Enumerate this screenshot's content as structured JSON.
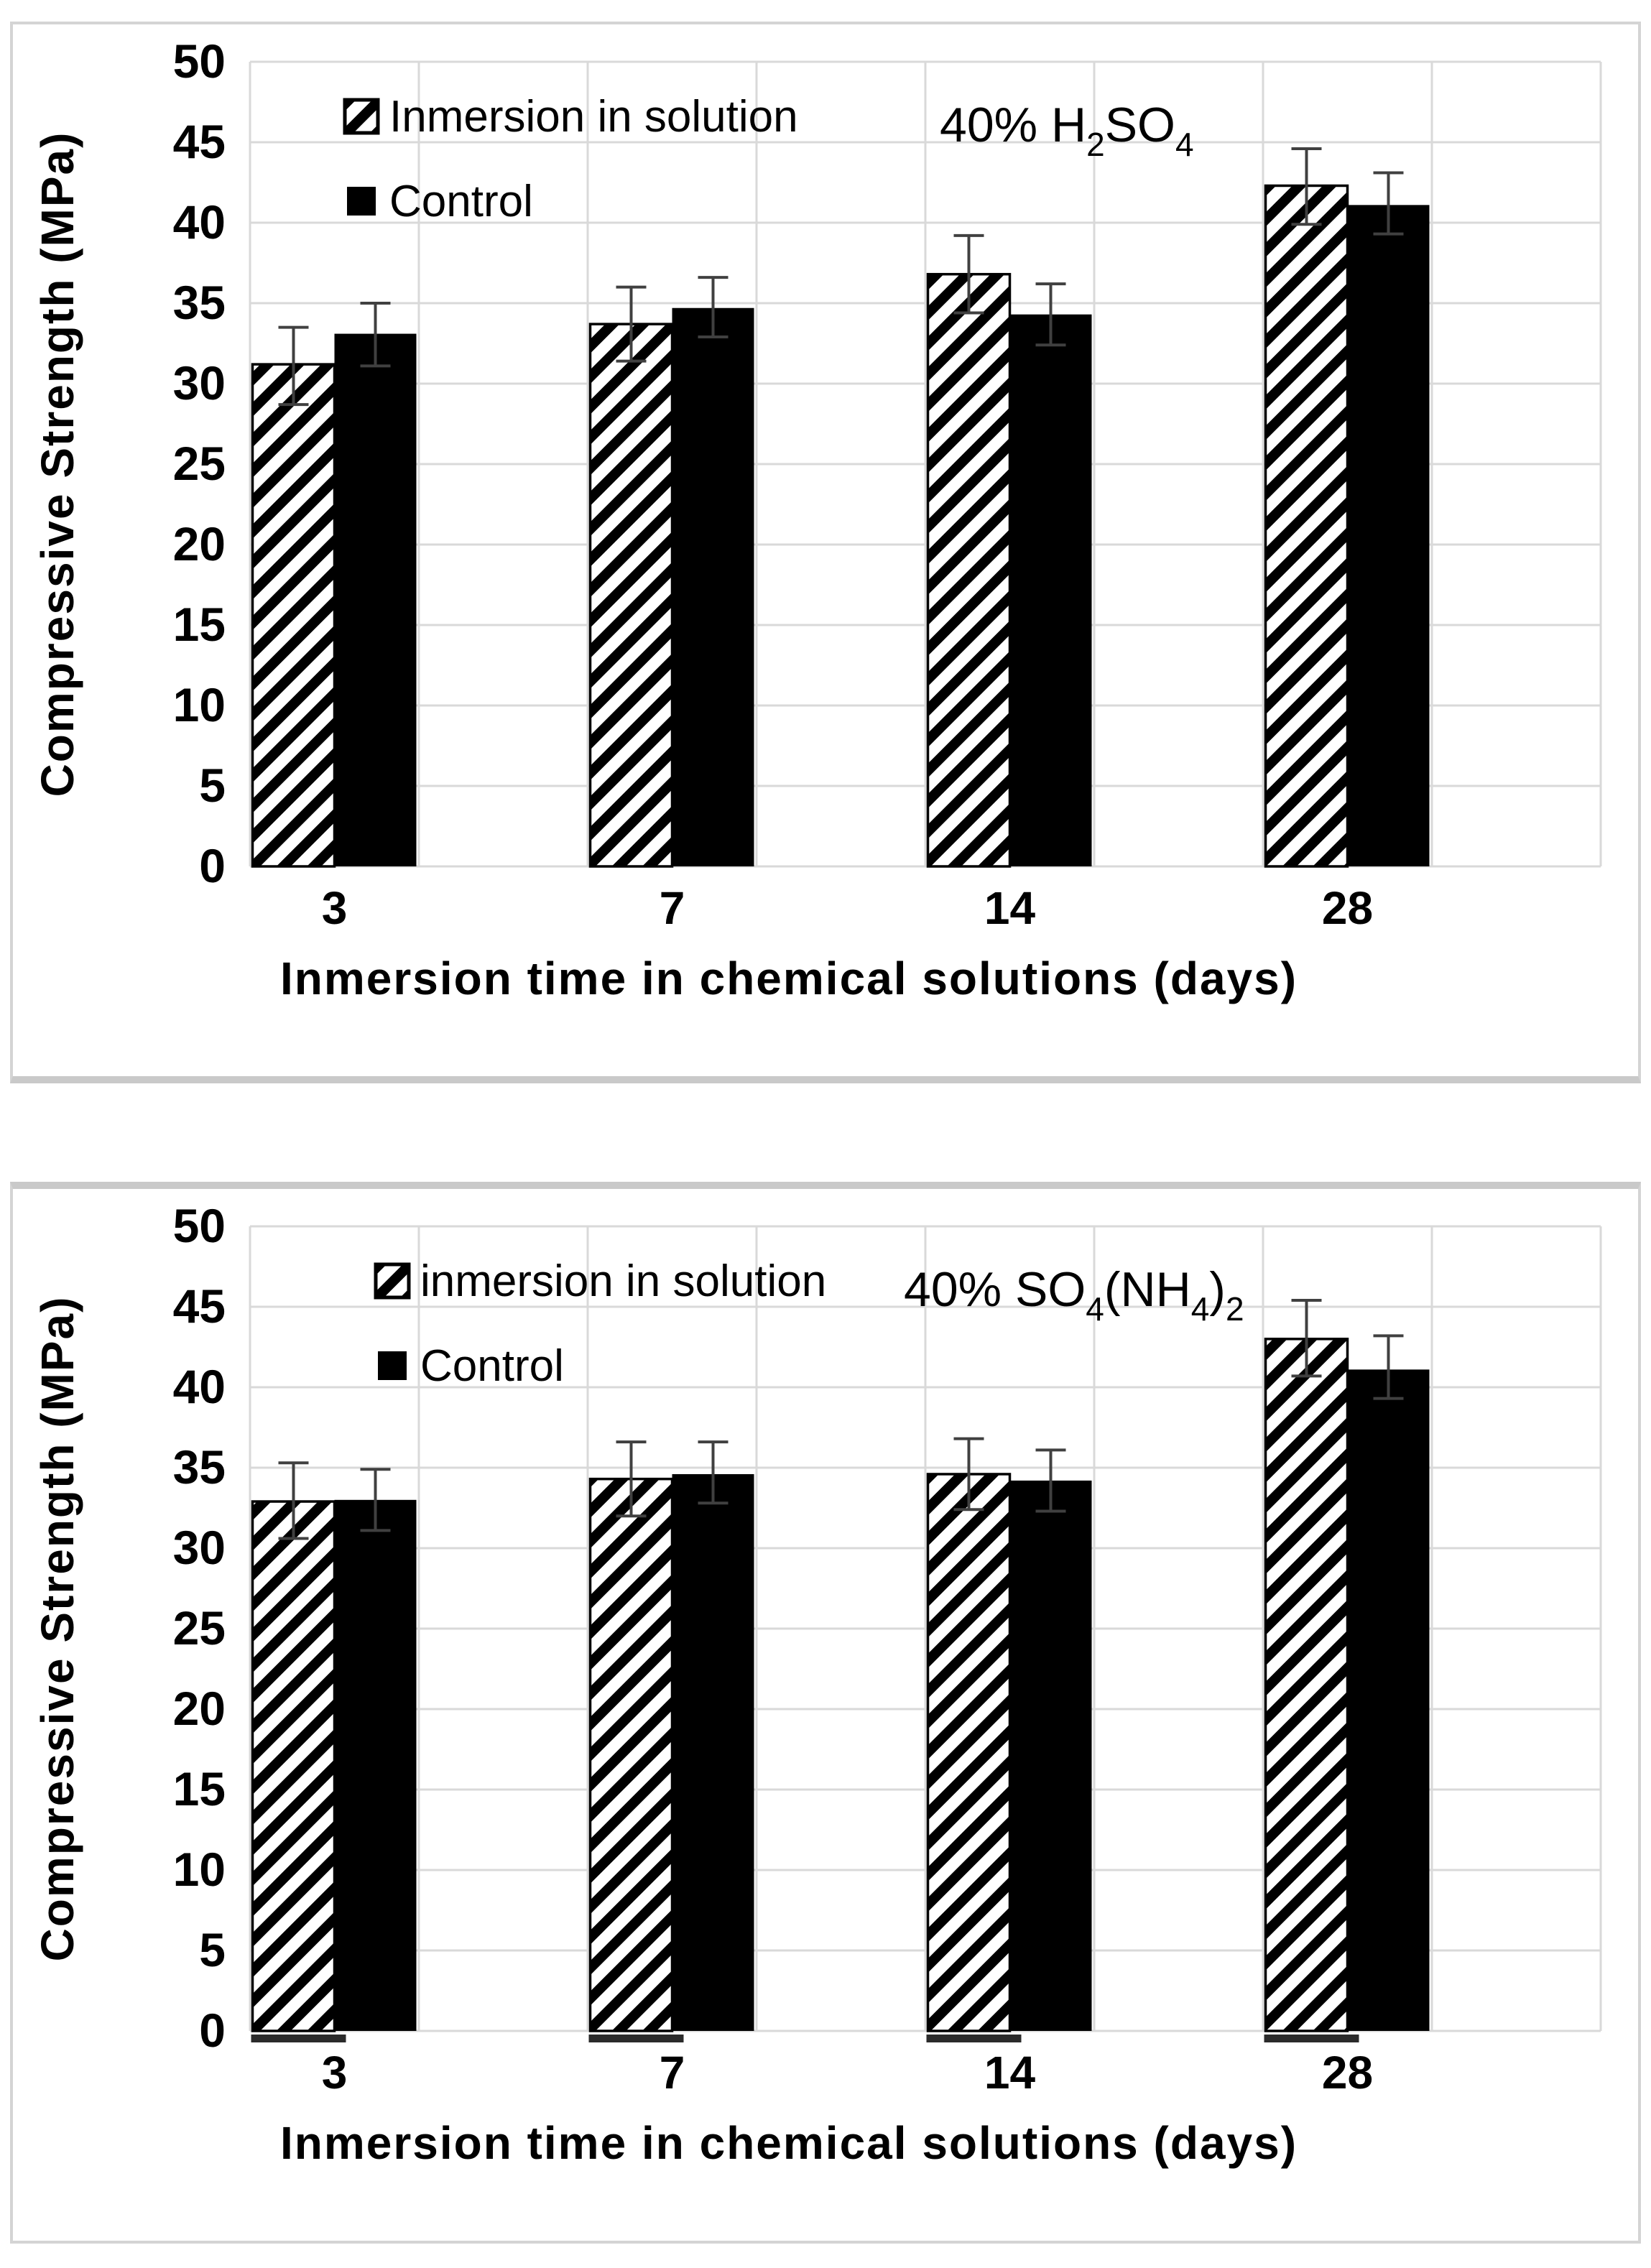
{
  "page": {
    "background": "#ffffff",
    "description": "Two stacked panels with grouped bar charts of concrete compressive strength after immersion in chemical solutions"
  },
  "colors": {
    "bar_solid": "#000000",
    "bar_hatch_line": "#000000",
    "bar_hatch_background": "#ffffff",
    "bar_outline": "#000000",
    "grid": "#d9d9d9",
    "error_bar": "#404040",
    "text": "#000000",
    "panel_border": "#d4d4d4",
    "panel_shadow": "#c9c9c9",
    "background": "#ffffff"
  },
  "chart_data": [
    {
      "type": "bar",
      "title": "40% H₂SO₄",
      "title_parts": [
        {
          "text": "40% H",
          "sub": false
        },
        {
          "text": "2",
          "sub": true
        },
        {
          "text": "SO",
          "sub": false
        },
        {
          "text": "4",
          "sub": true
        }
      ],
      "categories": [
        "3",
        "7",
        "14",
        "28"
      ],
      "series": [
        {
          "name": "Inmersion in solution",
          "swatch": "hatched",
          "values": [
            31.2,
            33.7,
            36.8,
            42.3
          ],
          "err_up": [
            2.3,
            2.3,
            2.4,
            2.3
          ],
          "err_down": [
            2.5,
            2.3,
            2.4,
            2.4
          ]
        },
        {
          "name": "Control",
          "swatch": "solid",
          "values": [
            33.1,
            34.7,
            34.3,
            41.1
          ],
          "err_up": [
            1.9,
            1.9,
            1.9,
            2.0
          ],
          "err_down": [
            2.0,
            1.8,
            1.9,
            1.8
          ]
        }
      ],
      "xlabel": "Inmersion time in chemical solutions (days)",
      "ylabel": "Compressive Strength (MPa)",
      "ylim": [
        0,
        50
      ],
      "ytick_step": 5,
      "ytick_labels": [
        "0",
        "5",
        "10",
        "15",
        "20",
        "25",
        "30",
        "35",
        "40",
        "45",
        "50"
      ],
      "grid": true,
      "legend_position": "top-left-inside",
      "baseline_marks": false
    },
    {
      "type": "bar",
      "title": "40% SO₄(NH₄)₂",
      "title_parts": [
        {
          "text": "40% SO",
          "sub": false
        },
        {
          "text": "4",
          "sub": true
        },
        {
          "text": "(NH",
          "sub": false
        },
        {
          "text": "4",
          "sub": true
        },
        {
          "text": ")",
          "sub": false
        },
        {
          "text": "2",
          "sub": true
        }
      ],
      "categories": [
        "3",
        "7",
        "14",
        "28"
      ],
      "series": [
        {
          "name": "inmersion in solution",
          "swatch": "hatched",
          "values": [
            32.9,
            34.3,
            34.6,
            43.0
          ],
          "err_up": [
            2.4,
            2.3,
            2.2,
            2.4
          ],
          "err_down": [
            2.3,
            2.3,
            2.2,
            2.3
          ]
        },
        {
          "name": "Control",
          "swatch": "solid",
          "values": [
            33.0,
            34.6,
            34.2,
            41.1
          ],
          "err_up": [
            1.9,
            2.0,
            1.9,
            2.1
          ],
          "err_down": [
            1.9,
            1.8,
            1.9,
            1.8
          ]
        }
      ],
      "xlabel": "Inmersion time in chemical solutions (days)",
      "ylabel": "Compressive Strength (MPa)",
      "ylim": [
        0,
        50
      ],
      "ytick_step": 5,
      "ytick_labels": [
        "0",
        "5",
        "10",
        "15",
        "20",
        "25",
        "30",
        "35",
        "40",
        "45",
        "50"
      ],
      "grid": true,
      "legend_position": "top-left-inside",
      "baseline_marks": true
    }
  ]
}
